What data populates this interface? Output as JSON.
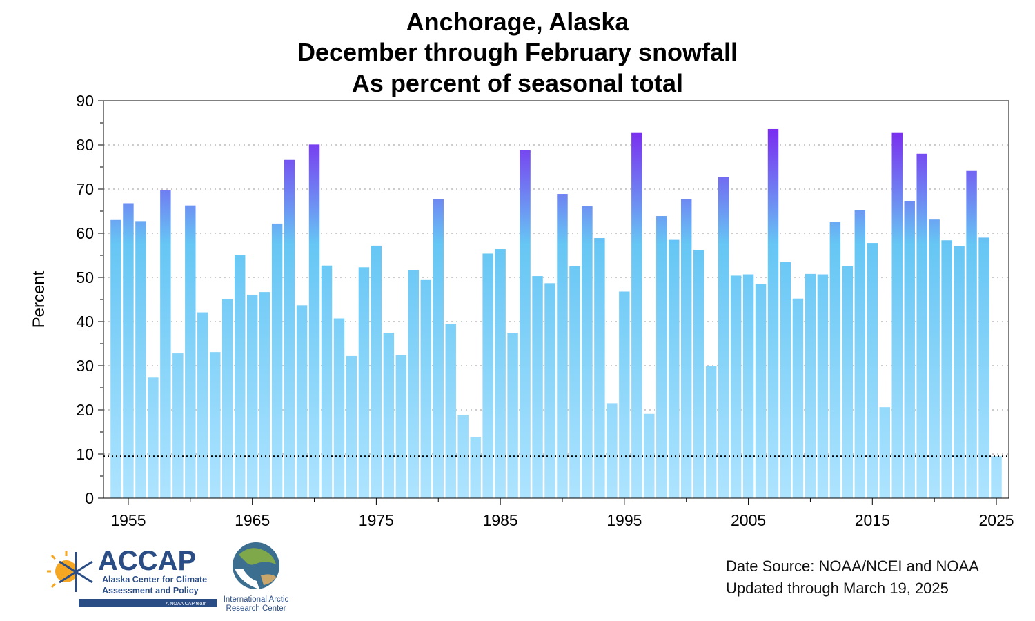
{
  "chart_data": {
    "type": "bar",
    "title": [
      "Anchorage, Alaska",
      "December through February snowfall",
      "As percent of seasonal total"
    ],
    "ylabel": "Percent",
    "xlabel": "",
    "ylim": [
      0,
      90
    ],
    "yticks": [
      0,
      10,
      20,
      30,
      40,
      50,
      60,
      70,
      80,
      90
    ],
    "xticks": [
      1955,
      1965,
      1975,
      1985,
      1995,
      2005,
      2015,
      2025
    ],
    "grid": "horizontal dotted",
    "reference_line": 9.5,
    "colors": {
      "low": "#aee4ff",
      "mid": "#66c6f4",
      "high": "#7a2ff0"
    },
    "x": [
      1954,
      1955,
      1956,
      1957,
      1958,
      1959,
      1960,
      1961,
      1962,
      1963,
      1964,
      1965,
      1966,
      1967,
      1968,
      1969,
      1970,
      1971,
      1972,
      1973,
      1974,
      1975,
      1976,
      1977,
      1978,
      1979,
      1980,
      1981,
      1982,
      1983,
      1984,
      1985,
      1986,
      1987,
      1988,
      1989,
      1990,
      1991,
      1992,
      1993,
      1994,
      1995,
      1996,
      1997,
      1998,
      1999,
      2000,
      2001,
      2002,
      2003,
      2004,
      2005,
      2006,
      2007,
      2008,
      2009,
      2010,
      2011,
      2012,
      2013,
      2014,
      2015,
      2016,
      2017,
      2018,
      2019,
      2020,
      2021,
      2022,
      2023,
      2024,
      2025
    ],
    "values": [
      63,
      66.8,
      62.6,
      27.3,
      69.7,
      32.8,
      66.3,
      42.1,
      33.1,
      45.1,
      55,
      46.1,
      46.7,
      62.2,
      76.6,
      43.7,
      80.1,
      52.7,
      40.7,
      32.2,
      52.3,
      57.2,
      37.5,
      32.4,
      51.6,
      49.4,
      67.8,
      39.5,
      18.9,
      13.9,
      55.4,
      56.4,
      37.5,
      78.8,
      50.3,
      48.7,
      68.9,
      52.5,
      66.1,
      58.9,
      21.5,
      46.8,
      82.7,
      19.1,
      63.9,
      58.5,
      67.8,
      56.2,
      29.9,
      72.8,
      50.4,
      50.7,
      48.5,
      83.6,
      53.5,
      45.2,
      50.8,
      50.7,
      62.5,
      52.5,
      65.2,
      57.8,
      20.6,
      82.7,
      67.3,
      78,
      63.1,
      58.4,
      57.1,
      74.1,
      59,
      9.5
    ]
  },
  "footer": {
    "source": "Date Source: NOAA/NCEI and NOAA",
    "updated": "Updated through March 19, 2025"
  },
  "logos": {
    "accap_name": "ACCAP",
    "accap_line1": "Alaska Center for Climate",
    "accap_line2": "Assessment and Policy",
    "accap_tag": "A NOAA CAP team",
    "iarc_line1": "International Arctic",
    "iarc_line2": "Research Center"
  }
}
